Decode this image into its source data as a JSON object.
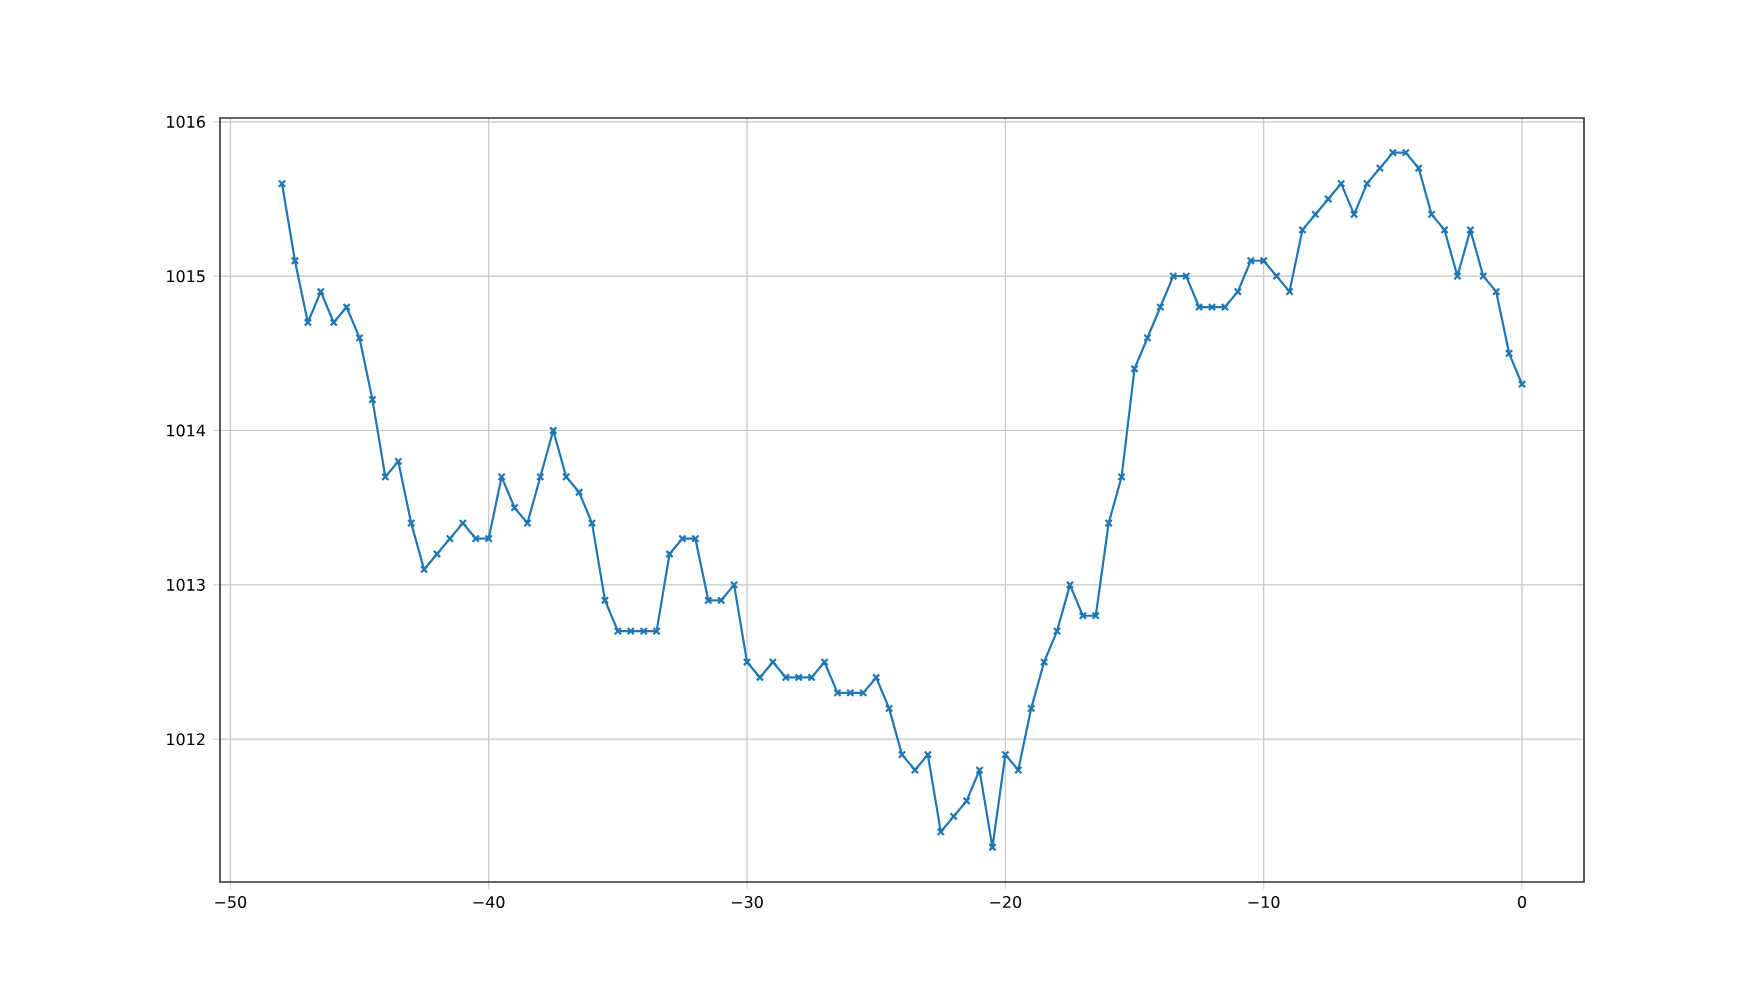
{
  "chart_data": {
    "type": "line",
    "color": "#1f77b4",
    "marker": "cross",
    "line_style": "solid",
    "grid": true,
    "x": [
      -48,
      -47.5,
      -47,
      -46.5,
      -46,
      -45.5,
      -45,
      -44.5,
      -44,
      -43.5,
      -43,
      -42.5,
      -42,
      -41.5,
      -41,
      -40.5,
      -40,
      -39.5,
      -39,
      -38.5,
      -38,
      -37.5,
      -37,
      -36.5,
      -36,
      -35.5,
      -35,
      -34.5,
      -34,
      -33.5,
      -33,
      -32.5,
      -32,
      -31.5,
      -31,
      -30.5,
      -30,
      -29.5,
      -29,
      -28.5,
      -28,
      -27.5,
      -27,
      -26.5,
      -26,
      -25.5,
      -25,
      -24.5,
      -24,
      -23.5,
      -23,
      -22.5,
      -22,
      -21.5,
      -21,
      -20.5,
      -20,
      -19.5,
      -19,
      -18.5,
      -18,
      -17.5,
      -17,
      -16.5,
      -16,
      -15.5,
      -15,
      -14.5,
      -14,
      -13.5,
      -13,
      -12.5,
      -12,
      -11.5,
      -11,
      -10.5,
      -10,
      -9.5,
      -9,
      -8.5,
      -8,
      -7.5,
      -7,
      -6.5,
      -6,
      -5.5,
      -5,
      -4.5,
      -4,
      -3.5,
      -3,
      -2.5,
      -2,
      -1.5,
      -1,
      -0.5,
      0
    ],
    "values": [
      1015.6,
      1015.1,
      1014.7,
      1014.9,
      1014.7,
      1014.8,
      1014.6,
      1014.2,
      1013.7,
      1013.8,
      1013.4,
      1013.1,
      1013.2,
      1013.3,
      1013.4,
      1013.3,
      1013.3,
      1013.7,
      1013.5,
      1013.4,
      1013.7,
      1014.0,
      1013.7,
      1013.6,
      1013.4,
      1012.9,
      1012.7,
      1012.7,
      1012.7,
      1012.7,
      1013.2,
      1013.3,
      1013.3,
      1012.9,
      1012.9,
      1013.0,
      1012.5,
      1012.4,
      1012.5,
      1012.4,
      1012.4,
      1012.4,
      1012.5,
      1012.3,
      1012.3,
      1012.3,
      1012.4,
      1012.2,
      1011.9,
      1011.8,
      1011.9,
      1011.4,
      1011.5,
      1011.6,
      1011.8,
      1011.3,
      1011.9,
      1011.8,
      1012.2,
      1012.5,
      1012.7,
      1013.0,
      1012.8,
      1012.8,
      1013.4,
      1013.7,
      1014.4,
      1014.6,
      1014.8,
      1015.0,
      1015.0,
      1014.8,
      1014.8,
      1014.8,
      1014.9,
      1015.1,
      1015.1,
      1015.0,
      1014.9,
      1015.3,
      1015.4,
      1015.5,
      1015.6,
      1015.4,
      1015.6,
      1015.7,
      1015.8,
      1015.8,
      1015.7,
      1015.4,
      1015.3,
      1015.0,
      1015.3,
      1015.0,
      1014.9,
      1014.5,
      1014.3
    ],
    "xlim": [
      -50.4,
      2.4
    ],
    "ylim": [
      1011.075,
      1016.025
    ],
    "xticks": [
      {
        "value": -50,
        "label": "−50"
      },
      {
        "value": -40,
        "label": "−40"
      },
      {
        "value": -30,
        "label": "−30"
      },
      {
        "value": -20,
        "label": "−20"
      },
      {
        "value": -10,
        "label": "−10"
      },
      0
    ],
    "yticks": [
      1012,
      1013,
      1014,
      1015,
      1016
    ]
  }
}
